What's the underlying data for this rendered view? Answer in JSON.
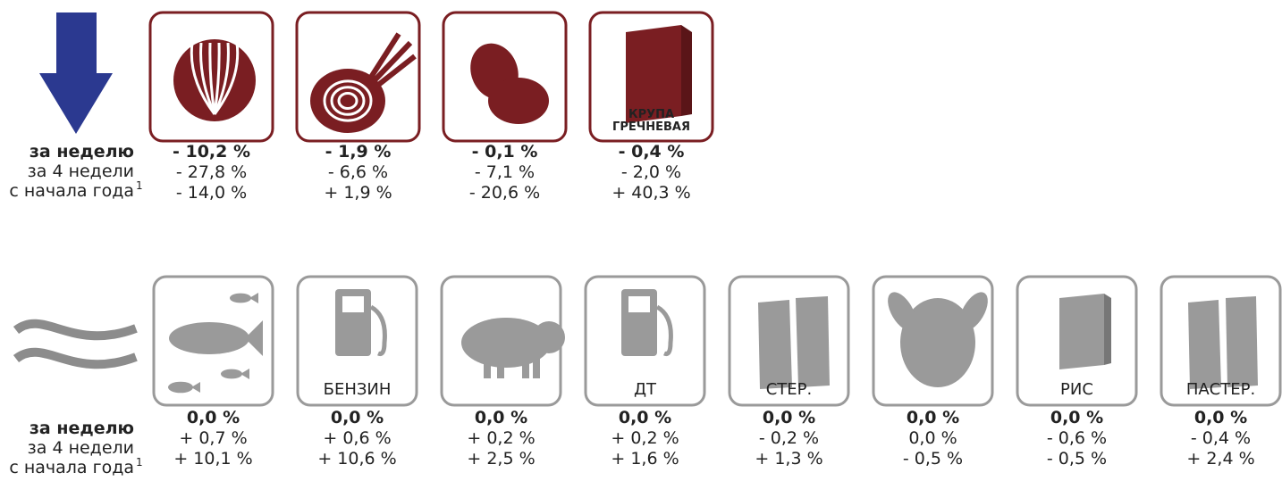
{
  "rows": [
    {
      "labels": [
        "за неделю",
        "за 4 недели",
        "с начала года"
      ],
      "footnote": "1",
      "items": [
        {
          "values": [
            "- 10,2 %",
            "- 27,8 %",
            "- 14,0 %"
          ]
        },
        {
          "values": [
            "- 1,9 %",
            "- 6,6 %",
            "+ 1,9 %"
          ]
        },
        {
          "values": [
            "- 0,1 %",
            "- 7,1 %",
            "- 20,6 %"
          ]
        },
        {
          "icon_label": [
            "КРУПА",
            "ГРЕЧНЕВАЯ"
          ],
          "values": [
            "- 0,4 %",
            "- 2,0 %",
            "+ 40,3 %"
          ]
        }
      ]
    },
    {
      "labels": [
        "за неделю",
        "за 4 недели",
        "с начала года"
      ],
      "footnote": "1",
      "items": [
        {
          "values": [
            "0,0 %",
            "+  0,7 %",
            "+ 10,1 %"
          ]
        },
        {
          "icon_label": [
            "БЕНЗИН"
          ],
          "values": [
            "0,0 %",
            "+ 0,6 %",
            "+ 10,6 %"
          ]
        },
        {
          "values": [
            "0,0 %",
            "+ 0,2 %",
            "+ 2,5 %"
          ]
        },
        {
          "icon_label": [
            "ДТ"
          ],
          "values": [
            "0,0 %",
            "+ 0,2 %",
            "+ 1,6 %"
          ]
        },
        {
          "icon_label": [
            "СТЕР."
          ],
          "values": [
            "0,0 %",
            "- 0,2 %",
            "+ 1,3 %"
          ]
        },
        {
          "values": [
            "0,0 %",
            "0,0 %",
            "- 0,5 %"
          ]
        },
        {
          "icon_label": [
            "РИС"
          ],
          "values": [
            "0,0 %",
            "- 0,6 %",
            "- 0,5 %"
          ]
        },
        {
          "icon_label": [
            "ПАСТЕР."
          ],
          "values": [
            "0,0 %",
            "- 0,4 %",
            "+ 2,4 %"
          ]
        }
      ]
    }
  ]
}
